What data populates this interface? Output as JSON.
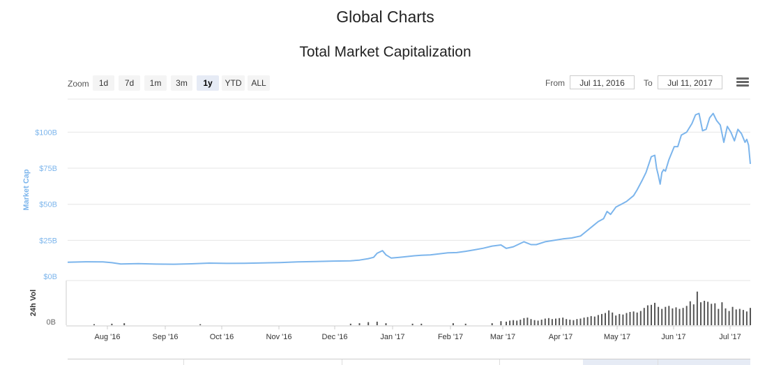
{
  "header": {
    "page_title": "Global Charts",
    "chart_title": "Total Market Capitalization"
  },
  "toolbar": {
    "zoom_label": "Zoom",
    "zoom_buttons": [
      "1d",
      "7d",
      "1m",
      "3m",
      "1y",
      "YTD",
      "ALL"
    ],
    "active_zoom": "1y",
    "from_label": "From",
    "from_value": "Jul 11, 2016",
    "to_label": "To",
    "to_value": "Jul 11, 2017",
    "menu_icon": "hamburger-menu-icon"
  },
  "colors": {
    "line": "#7cb5ec",
    "axis_text": "#7cb5ec",
    "volume_bar": "#555555",
    "grid": "#e6e6e6"
  },
  "chart_data": {
    "type": "line",
    "y_axis": {
      "label": "Market Cap",
      "ticks": [
        "$0B",
        "$25B",
        "$50B",
        "$75B",
        "$100B"
      ],
      "range": [
        0,
        110
      ]
    },
    "volume_axis": {
      "label": "24h Vol",
      "ticks": [
        "0B"
      ]
    },
    "x_axis": {
      "ticks": [
        "Aug '16",
        "Sep '16",
        "Oct '16",
        "Nov '16",
        "Dec '16",
        "Jan '17",
        "Feb '17",
        "Mar '17",
        "Apr '17",
        "May '17",
        "Jun '17",
        "Jul '17"
      ]
    },
    "series": [
      {
        "points": [
          [
            0,
            9.8
          ],
          [
            10,
            10.1
          ],
          [
            20,
            10.0
          ],
          [
            25,
            9.5
          ],
          [
            30,
            8.6
          ],
          [
            40,
            8.8
          ],
          [
            50,
            8.5
          ],
          [
            60,
            8.4
          ],
          [
            70,
            8.7
          ],
          [
            80,
            9.2
          ],
          [
            90,
            9.0
          ],
          [
            100,
            9.1
          ],
          [
            110,
            9.3
          ],
          [
            120,
            9.6
          ],
          [
            130,
            10.0
          ],
          [
            140,
            10.3
          ],
          [
            150,
            10.6
          ],
          [
            160,
            10.8
          ],
          [
            165,
            11.3
          ],
          [
            170,
            12.3
          ],
          [
            173,
            13.2
          ],
          [
            175,
            16.0
          ],
          [
            178,
            17.8
          ],
          [
            180,
            14.9
          ],
          [
            183,
            12.7
          ],
          [
            187,
            13.1
          ],
          [
            190,
            13.5
          ],
          [
            196,
            14.3
          ],
          [
            200,
            14.6
          ],
          [
            205,
            14.9
          ],
          [
            210,
            15.6
          ],
          [
            215,
            16.3
          ],
          [
            220,
            16.5
          ],
          [
            225,
            17.4
          ],
          [
            230,
            18.4
          ],
          [
            235,
            19.5
          ],
          [
            240,
            21.0
          ],
          [
            245,
            21.8
          ],
          [
            248,
            19.4
          ],
          [
            252,
            20.5
          ],
          [
            258,
            24.0
          ],
          [
            262,
            22.0
          ],
          [
            265,
            22.0
          ],
          [
            270,
            24.0
          ],
          [
            275,
            25.0
          ],
          [
            280,
            26.0
          ],
          [
            285,
            26.6
          ],
          [
            290,
            28.0
          ],
          [
            293,
            31.0
          ],
          [
            297,
            35.0
          ],
          [
            300,
            38.0
          ],
          [
            303,
            40.0
          ],
          [
            305,
            45.0
          ],
          [
            307,
            43.0
          ],
          [
            310,
            48.0
          ],
          [
            313,
            50.0
          ],
          [
            316,
            52.0
          ],
          [
            320,
            56.0
          ],
          [
            322,
            60.0
          ],
          [
            325,
            67.0
          ],
          [
            327,
            72.0
          ],
          [
            330,
            83.0
          ],
          [
            332,
            84.0
          ],
          [
            333,
            75.0
          ],
          [
            334,
            70.0
          ],
          [
            335,
            64.0
          ],
          [
            336,
            72.0
          ],
          [
            337,
            74.0
          ],
          [
            338,
            73.0
          ],
          [
            340,
            81.0
          ],
          [
            343,
            90.0
          ],
          [
            345,
            90.0
          ],
          [
            347,
            98.0
          ],
          [
            350,
            100.0
          ],
          [
            353,
            106.0
          ],
          [
            355,
            112.0
          ],
          [
            357,
            113.0
          ],
          [
            359,
            101.0
          ],
          [
            361,
            102.0
          ],
          [
            363,
            110.0
          ],
          [
            365,
            113.0
          ],
          [
            367,
            108.0
          ],
          [
            369,
            105.0
          ],
          [
            371,
            93.0
          ],
          [
            373,
            104.0
          ],
          [
            375,
            100.0
          ],
          [
            377,
            94.0
          ],
          [
            379,
            102.0
          ],
          [
            381,
            99.0
          ],
          [
            383,
            93.0
          ],
          [
            384,
            95.0
          ],
          [
            385,
            91.0
          ],
          [
            386,
            78.0
          ]
        ]
      }
    ],
    "volume": [
      [
        15,
        0.2
      ],
      [
        25,
        0.3
      ],
      [
        32,
        0.4
      ],
      [
        75,
        0.2
      ],
      [
        160,
        0.3
      ],
      [
        165,
        0.4
      ],
      [
        170,
        0.6
      ],
      [
        175,
        0.7
      ],
      [
        180,
        0.4
      ],
      [
        195,
        0.3
      ],
      [
        200,
        0.3
      ],
      [
        218,
        0.4
      ],
      [
        225,
        0.3
      ],
      [
        240,
        0.4
      ],
      [
        245,
        0.8
      ],
      [
        248,
        0.7
      ],
      [
        250,
        0.9
      ],
      [
        252,
        1.0
      ],
      [
        254,
        0.9
      ],
      [
        256,
        1.1
      ],
      [
        258,
        1.4
      ],
      [
        260,
        1.5
      ],
      [
        262,
        1.2
      ],
      [
        264,
        1.0
      ],
      [
        266,
        0.9
      ],
      [
        268,
        1.1
      ],
      [
        270,
        1.3
      ],
      [
        272,
        1.4
      ],
      [
        274,
        1.2
      ],
      [
        276,
        1.3
      ],
      [
        278,
        1.4
      ],
      [
        280,
        1.5
      ],
      [
        282,
        1.2
      ],
      [
        284,
        1.1
      ],
      [
        286,
        1.0
      ],
      [
        288,
        1.2
      ],
      [
        290,
        1.3
      ],
      [
        292,
        1.5
      ],
      [
        294,
        1.6
      ],
      [
        296,
        1.8
      ],
      [
        298,
        1.7
      ],
      [
        300,
        2.0
      ],
      [
        302,
        2.2
      ],
      [
        304,
        2.4
      ],
      [
        306,
        2.9
      ],
      [
        308,
        2.5
      ],
      [
        310,
        1.9
      ],
      [
        312,
        2.2
      ],
      [
        314,
        2.1
      ],
      [
        316,
        2.4
      ],
      [
        318,
        2.6
      ],
      [
        320,
        2.7
      ],
      [
        322,
        2.5
      ],
      [
        324,
        2.8
      ],
      [
        326,
        3.4
      ],
      [
        328,
        3.9
      ],
      [
        330,
        4.0
      ],
      [
        332,
        4.4
      ],
      [
        334,
        3.6
      ],
      [
        336,
        3.2
      ],
      [
        338,
        3.6
      ],
      [
        340,
        3.8
      ],
      [
        342,
        3.3
      ],
      [
        344,
        3.5
      ],
      [
        346,
        3.2
      ],
      [
        348,
        3.4
      ],
      [
        350,
        3.8
      ],
      [
        352,
        4.7
      ],
      [
        354,
        4.1
      ],
      [
        356,
        6.6
      ],
      [
        358,
        4.5
      ],
      [
        360,
        4.8
      ],
      [
        362,
        4.6
      ],
      [
        364,
        4.2
      ],
      [
        366,
        4.3
      ],
      [
        368,
        3.2
      ],
      [
        370,
        4.5
      ],
      [
        372,
        3.3
      ],
      [
        374,
        2.8
      ],
      [
        376,
        3.6
      ],
      [
        378,
        3.1
      ],
      [
        380,
        3.2
      ],
      [
        382,
        3.0
      ],
      [
        384,
        2.7
      ],
      [
        386,
        3.4
      ]
    ]
  }
}
